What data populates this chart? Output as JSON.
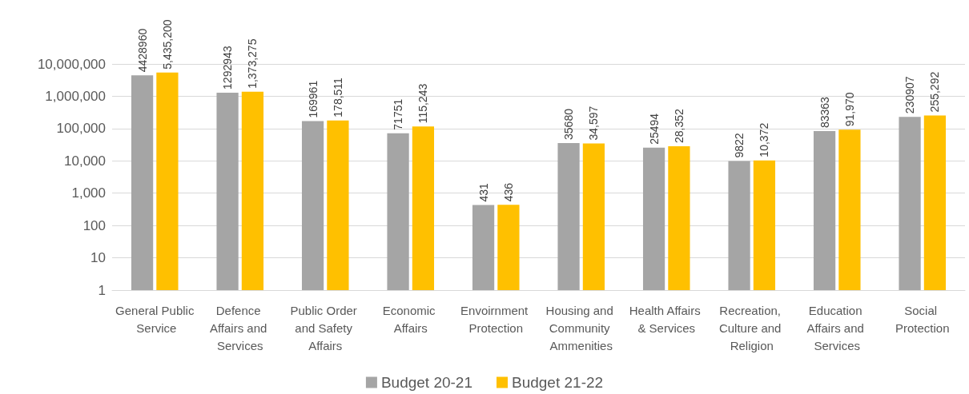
{
  "chart_data": {
    "type": "bar",
    "categories": [
      "General Public Service",
      "Defence Affairs and Services",
      "Public Order and Safety Affairs",
      "Economic Affairs",
      "Envoirnment Protection",
      "Housing and Community Ammenities",
      "Health Affairs & Services",
      "Recreation, Culture and Religion",
      "Education Affairs and Services",
      "Social Protection"
    ],
    "series": [
      {
        "name": "Budget 20-21",
        "color": "#a5a5a5",
        "values": [
          4428960,
          1292943,
          169961,
          71751,
          431,
          35680,
          25494,
          9822,
          83363,
          230907
        ],
        "value_labels": [
          "4428960",
          "1292943",
          "169961",
          "71751",
          "431",
          "35680",
          "25494",
          "9822",
          "83363",
          "230907"
        ]
      },
      {
        "name": "Budget 21-22",
        "color": "#ffc000",
        "values": [
          5435200,
          1373275,
          178511,
          115243,
          436,
          34597,
          28352,
          10372,
          91970,
          255292
        ],
        "value_labels": [
          "5,435,200",
          "1,373,275",
          "178,511",
          "115,243",
          "436",
          "34,597",
          "28,352",
          "10,372",
          "91,970",
          "255,292"
        ]
      }
    ],
    "log": "y",
    "ylim": [
      1,
      10000000
    ],
    "yticks": [
      1,
      10,
      100,
      {
        "value": 1000,
        "label": "1,000"
      },
      {
        "value": 10000,
        "label": "10,000"
      },
      {
        "value": 100000,
        "label": "100,000"
      },
      {
        "value": 1000000,
        "label": "1,000,000"
      },
      {
        "value": 10000000,
        "label": "10,000,000"
      }
    ],
    "grid": "y",
    "legend": "bottom"
  }
}
